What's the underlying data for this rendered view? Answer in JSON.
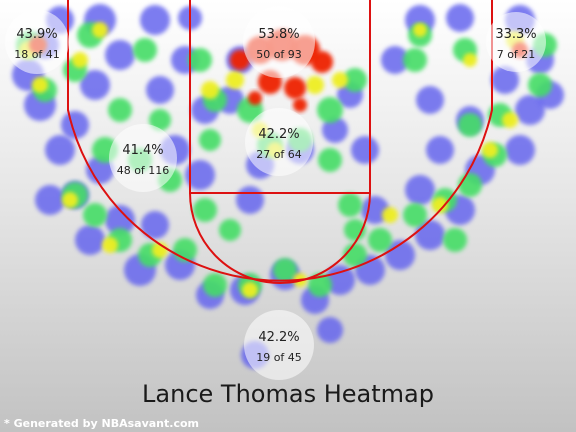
{
  "chart_data": {
    "type": "heatmap",
    "title": "Lance Thomas Heatmap",
    "zones": [
      {
        "id": "left-corner",
        "pct": "43.9%",
        "label": "18 of 41",
        "makes": 18,
        "attempts": 41,
        "pct_value": 43.9
      },
      {
        "id": "restricted-area",
        "pct": "53.8%",
        "label": "50 of 93",
        "makes": 50,
        "attempts": 93,
        "pct_value": 53.8
      },
      {
        "id": "right-corner",
        "pct": "33.3%",
        "label": "7 of 21",
        "makes": 7,
        "attempts": 21,
        "pct_value": 33.3
      },
      {
        "id": "left-midrange",
        "pct": "41.4%",
        "label": "48 of 116",
        "makes": 48,
        "attempts": 116,
        "pct_value": 41.4
      },
      {
        "id": "paint",
        "pct": "42.2%",
        "label": "27 of 64",
        "makes": 27,
        "attempts": 64,
        "pct_value": 42.2
      },
      {
        "id": "above-break-three",
        "pct": "42.2%",
        "label": "19 of 45",
        "makes": 19,
        "attempts": 45,
        "pct_value": 42.2
      }
    ],
    "colors": {
      "court_lines": "#dd1111",
      "cold": "#6666ee",
      "mid": "#44dd66",
      "warm": "#eeee22",
      "hot": "#ee2200"
    }
  },
  "credit": "* Generated by NBAsavant.com"
}
